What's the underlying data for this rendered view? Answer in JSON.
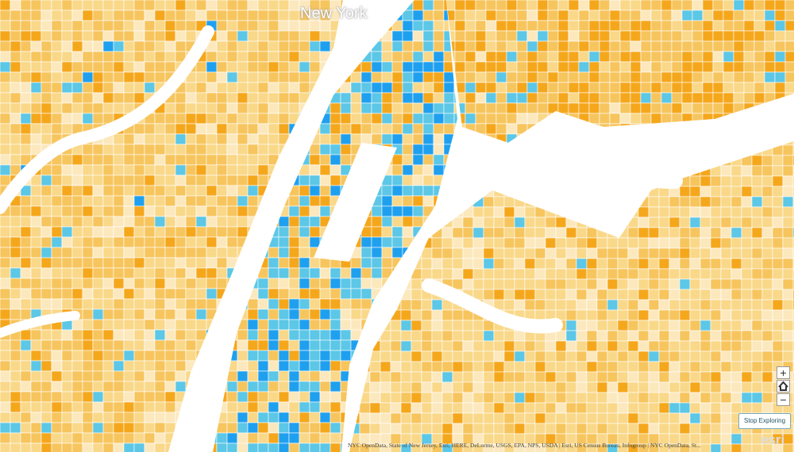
{
  "map": {
    "place_label": "New York",
    "attribution": "NYC OpenData, State of New Jersey, Esri, HERE, DeLorme, USGS, EPA, NPS, USDA | Esri, US Census Bureau, Infogroup | NYC OpenData, St...",
    "logo": "esri"
  },
  "controls": {
    "zoom_in": "+",
    "zoom_out": "−",
    "stop_exploring": "Stop Exploring"
  }
}
